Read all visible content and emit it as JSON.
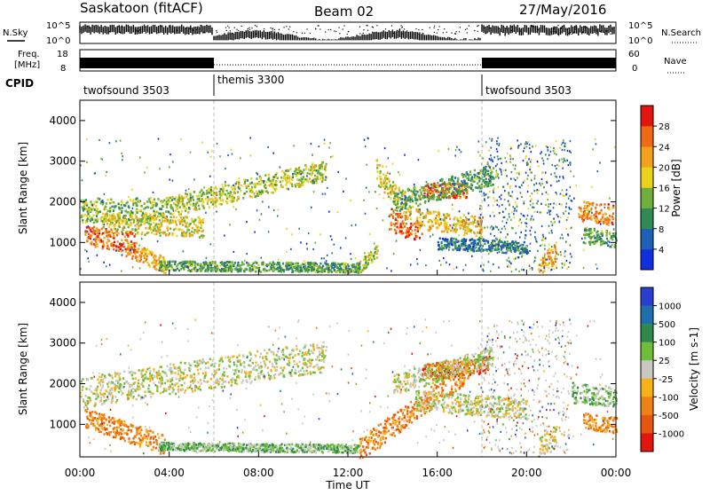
{
  "header": {
    "station": "Saskatoon (fitACF)",
    "beam": "Beam 02",
    "date": "27/May/2016"
  },
  "left_labels": {
    "nsky": "N.Sky",
    "freq_top": "Freq.",
    "freq_unit": "[MHz]",
    "cpid": "CPID"
  },
  "right_labels": {
    "nsearch": "N.Search",
    "nave": "Nave"
  },
  "noise_axis": {
    "top": "10^5",
    "bottom": "10^0"
  },
  "freq_axis": {
    "left_top": "18",
    "left_bottom": "8",
    "right_top": "60",
    "right_bottom": "0"
  },
  "cpid_segments": [
    {
      "start_hour": 0,
      "end_hour": 6,
      "label": "twofsound 3503"
    },
    {
      "start_hour": 6,
      "end_hour": 18,
      "label": "themis 3300"
    },
    {
      "start_hour": 18,
      "end_hour": 24,
      "label": "twofsound 3503"
    }
  ],
  "chart_data": [
    {
      "type": "heatmap",
      "name": "power",
      "xlabel": "Time UT",
      "ylabel": "Slant Range [km]",
      "xlim": [
        0,
        24
      ],
      "ylim": [
        200,
        4500
      ],
      "ytick_labels": [
        "1000",
        "2000",
        "3000",
        "4000"
      ],
      "ytick_values": [
        1000,
        2000,
        3000,
        4000
      ],
      "colorbar": {
        "label": "Power [dB]",
        "ticks": [
          "4",
          "8",
          "12",
          "16",
          "20",
          "24",
          "28"
        ],
        "range": [
          0,
          32
        ],
        "colors": [
          "#1030e0",
          "#1f5fb5",
          "#2f8a55",
          "#6fae3a",
          "#e9d21c",
          "#f2a11a",
          "#ef6a14",
          "#e2160e"
        ]
      },
      "bands": [
        {
          "t0": 0.0,
          "t1": 4.0,
          "r0": 1800,
          "r1": 1850,
          "w": 300,
          "level": 14
        },
        {
          "t0": 1.0,
          "t1": 5.5,
          "r0": 1500,
          "r1": 1400,
          "w": 250,
          "level": 18
        },
        {
          "t0": 4.0,
          "t1": 11.0,
          "r0": 1900,
          "r1": 2800,
          "w": 250,
          "level": 16
        },
        {
          "t0": 0.2,
          "t1": 2.5,
          "r0": 1200,
          "r1": 1000,
          "w": 250,
          "level": 26
        },
        {
          "t0": 2.0,
          "t1": 3.8,
          "r0": 900,
          "r1": 450,
          "w": 200,
          "level": 22
        },
        {
          "t0": 3.5,
          "t1": 12.5,
          "r0": 450,
          "r1": 400,
          "w": 120,
          "level": 12
        },
        {
          "t0": 13.2,
          "t1": 14.8,
          "r0": 2800,
          "r1": 1800,
          "w": 300,
          "level": 18
        },
        {
          "t0": 13.8,
          "t1": 15.3,
          "r0": 1600,
          "r1": 1300,
          "w": 300,
          "level": 26
        },
        {
          "t0": 15.0,
          "t1": 18.0,
          "r0": 1600,
          "r1": 1400,
          "w": 250,
          "level": 20
        },
        {
          "t0": 15.3,
          "t1": 17.3,
          "r0": 2300,
          "r1": 2300,
          "w": 180,
          "level": 26
        },
        {
          "t0": 14.0,
          "t1": 18.5,
          "r0": 2000,
          "r1": 2700,
          "w": 250,
          "level": 12
        },
        {
          "t0": 12.5,
          "t1": 13.3,
          "r0": 420,
          "r1": 820,
          "w": 150,
          "level": 16
        },
        {
          "t0": 16.0,
          "t1": 20.0,
          "r0": 1000,
          "r1": 900,
          "w": 150,
          "level": 8
        },
        {
          "t0": 20.5,
          "t1": 21.3,
          "r0": 450,
          "r1": 750,
          "w": 250,
          "level": 22
        },
        {
          "t0": 22.3,
          "t1": 23.9,
          "r0": 1800,
          "r1": 1700,
          "w": 250,
          "level": 24
        },
        {
          "t0": 22.5,
          "t1": 24.0,
          "r0": 1200,
          "r1": 1100,
          "w": 200,
          "level": 12
        }
      ]
    },
    {
      "type": "heatmap",
      "name": "velocity",
      "xlabel": "Time UT",
      "ylabel": "Slant Range [km]",
      "xlim": [
        0,
        24
      ],
      "ylim": [
        200,
        4500
      ],
      "xtick_labels": [
        "00:00",
        "04:00",
        "08:00",
        "12:00",
        "16:00",
        "20:00",
        "00:00"
      ],
      "xtick_values": [
        0,
        4,
        8,
        12,
        16,
        20,
        24
      ],
      "ytick_labels": [
        "1000",
        "2000",
        "3000",
        "4000"
      ],
      "ytick_values": [
        1000,
        2000,
        3000,
        4000
      ],
      "colorbar": {
        "label": "Velocity [m s-1]",
        "ticks": [
          "1000",
          "500",
          "100",
          "25",
          "-25",
          "-100",
          "-500",
          "-1000"
        ],
        "colors": [
          "#2a3fd0",
          "#1f6fb0",
          "#2e8a4a",
          "#6fbe3a",
          "#c8c8c0",
          "#f7b21a",
          "#ef8014",
          "#e5560e",
          "#e2160e"
        ]
      },
      "bands": [
        {
          "t0": 0.0,
          "t1": 11.0,
          "r0": 1800,
          "r1": 2700,
          "w": 380,
          "level": 4
        },
        {
          "t0": 0.2,
          "t1": 3.8,
          "r0": 1200,
          "r1": 500,
          "w": 250,
          "level": 6
        },
        {
          "t0": 3.5,
          "t1": 12.5,
          "r0": 480,
          "r1": 420,
          "w": 100,
          "level": 3
        },
        {
          "t0": 12.5,
          "t1": 17.5,
          "r0": 400,
          "r1": 2400,
          "w": 280,
          "level": 6
        },
        {
          "t0": 15.3,
          "t1": 18.3,
          "r0": 2300,
          "r1": 2500,
          "w": 200,
          "level": 7
        },
        {
          "t0": 14.0,
          "t1": 18.5,
          "r0": 2000,
          "r1": 2700,
          "w": 250,
          "level": 4
        },
        {
          "t0": 15.0,
          "t1": 20.0,
          "r0": 1600,
          "r1": 1400,
          "w": 250,
          "level": 4
        },
        {
          "t0": 20.5,
          "t1": 21.3,
          "r0": 450,
          "r1": 750,
          "w": 250,
          "level": 4
        },
        {
          "t0": 22.0,
          "t1": 24.0,
          "r0": 1800,
          "r1": 1700,
          "w": 250,
          "level": 3
        },
        {
          "t0": 22.5,
          "t1": 24.0,
          "r0": 1100,
          "r1": 1000,
          "w": 200,
          "level": 6
        }
      ]
    }
  ]
}
